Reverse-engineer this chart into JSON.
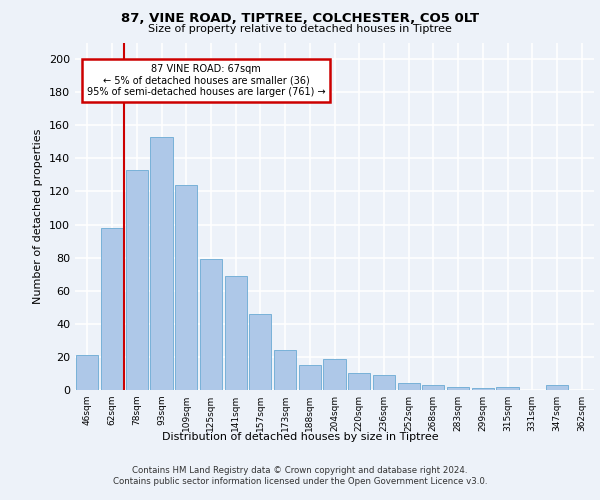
{
  "title1": "87, VINE ROAD, TIPTREE, COLCHESTER, CO5 0LT",
  "title2": "Size of property relative to detached houses in Tiptree",
  "xlabel": "Distribution of detached houses by size in Tiptree",
  "ylabel": "Number of detached properties",
  "categories": [
    "46sqm",
    "62sqm",
    "78sqm",
    "93sqm",
    "109sqm",
    "125sqm",
    "141sqm",
    "157sqm",
    "173sqm",
    "188sqm",
    "204sqm",
    "220sqm",
    "236sqm",
    "252sqm",
    "268sqm",
    "283sqm",
    "299sqm",
    "315sqm",
    "331sqm",
    "347sqm",
    "362sqm"
  ],
  "values": [
    21,
    98,
    133,
    153,
    124,
    79,
    69,
    46,
    24,
    15,
    19,
    10,
    9,
    4,
    3,
    2,
    1,
    2,
    0,
    3,
    0
  ],
  "bar_color": "#aec8e8",
  "bar_edge_color": "#6aaad4",
  "red_line_x": 1.5,
  "annotation_title": "87 VINE ROAD: 67sqm",
  "annotation_line1": "← 5% of detached houses are smaller (36)",
  "annotation_line2": "95% of semi-detached houses are larger (761) →",
  "annotation_box_color": "#ffffff",
  "annotation_box_edge": "#cc0000",
  "ylim": [
    0,
    210
  ],
  "yticks": [
    0,
    20,
    40,
    60,
    80,
    100,
    120,
    140,
    160,
    180,
    200
  ],
  "footnote1": "Contains HM Land Registry data © Crown copyright and database right 2024.",
  "footnote2": "Contains public sector information licensed under the Open Government Licence v3.0.",
  "bg_color": "#edf2f9",
  "plot_bg_color": "#edf2f9",
  "grid_color": "#ffffff",
  "red_line_color": "#cc0000"
}
